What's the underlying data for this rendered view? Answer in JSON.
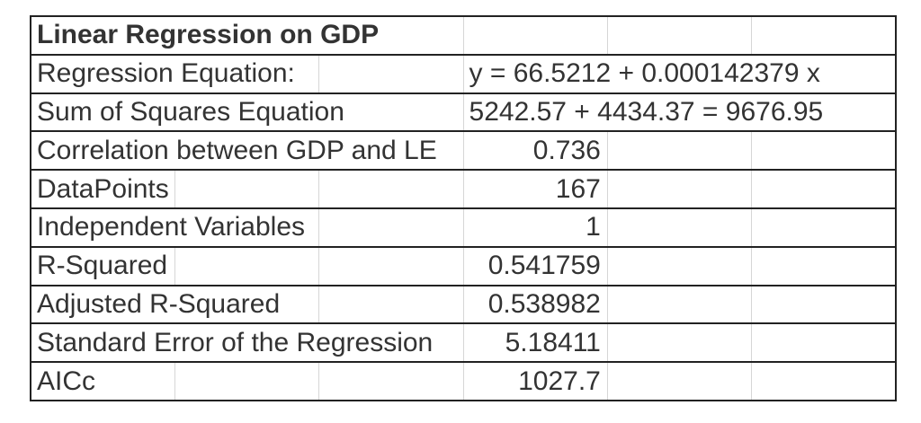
{
  "table": {
    "name": "regression-statistics",
    "rows": [
      {
        "label": "Linear Regression on GDP"
      },
      {
        "label": "Regression Equation:",
        "value": "y = 66.5212 + 0.000142379 x"
      },
      {
        "label": "Sum of Squares Equation",
        "value": "5242.57 + 4434.37 = 9676.95"
      },
      {
        "label": "Correlation between GDP and LE",
        "value": "0.736"
      },
      {
        "label": "DataPoints",
        "value": "167"
      },
      {
        "label": "Independent Variables",
        "value": "1"
      },
      {
        "label": "R-Squared",
        "value": "0.541759"
      },
      {
        "label": "Adjusted R-Squared",
        "value": "0.538982"
      },
      {
        "label": "Standard Error of the Regression",
        "value": "5.18411"
      },
      {
        "label": "AICc",
        "value": "1027.7"
      }
    ]
  },
  "colors": {
    "border_dark": "#222222",
    "grid_light": "#d6d6d6",
    "text": "#333333",
    "background": "#ffffff"
  }
}
